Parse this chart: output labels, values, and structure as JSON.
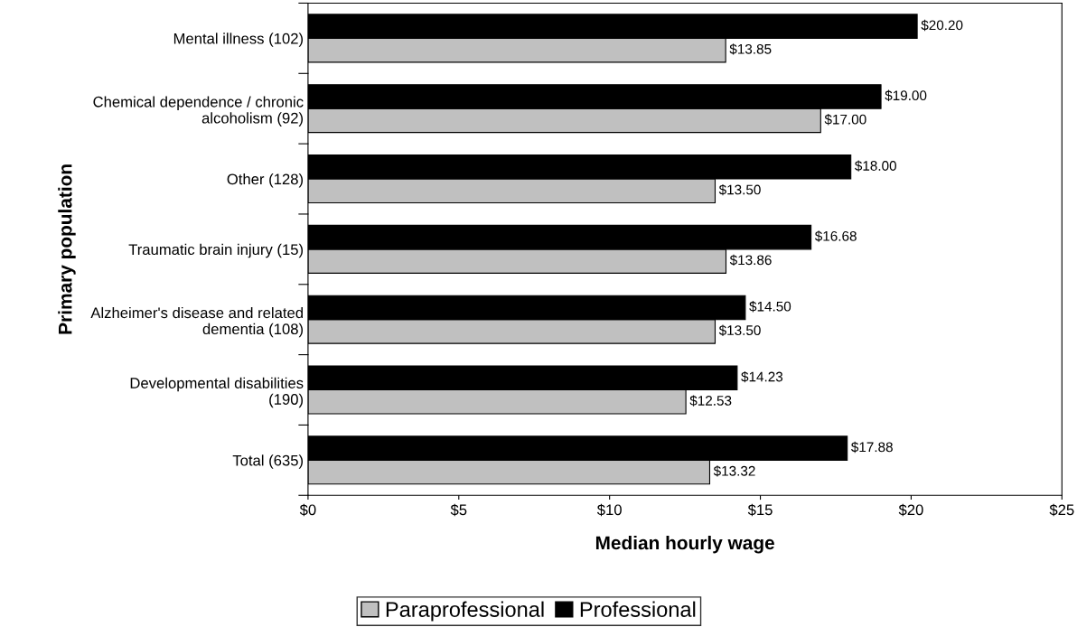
{
  "chart_data": {
    "type": "bar",
    "orientation": "horizontal",
    "xlabel": "Median hourly wage",
    "ylabel": "Primary population",
    "categories": [
      "Mental illness (102)",
      "Chemical dependence / chronic\nalcoholism (92)",
      "Other (128)",
      "Traumatic brain injury (15)",
      "Alzheimer's disease and related\ndementia (108)",
      "Developmental disabilities\n(190)",
      "Total (635)"
    ],
    "series": [
      {
        "name": "Paraprofessional",
        "color": "#c0c0c0",
        "values": [
          13.85,
          17.0,
          13.5,
          13.86,
          13.5,
          12.53,
          13.32
        ],
        "value_labels": [
          "$13.85",
          "$17.00",
          "$13.50",
          "$13.86",
          "$13.50",
          "$12.53",
          "$13.32"
        ]
      },
      {
        "name": "Professional",
        "color": "#000000",
        "values": [
          20.2,
          19.0,
          18.0,
          16.68,
          14.5,
          14.23,
          17.88
        ],
        "value_labels": [
          "$20.20",
          "$19.00",
          "$18.00",
          "$16.68",
          "$14.50",
          "$14.23",
          "$17.88"
        ]
      }
    ],
    "xlim": [
      0,
      25
    ],
    "xticks": [
      {
        "value": 0,
        "label": "$0"
      },
      {
        "value": 5,
        "label": "$5"
      },
      {
        "value": 10,
        "label": "$10"
      },
      {
        "value": 15,
        "label": "$15"
      },
      {
        "value": 20,
        "label": "$20"
      },
      {
        "value": 25,
        "label": "$25"
      }
    ],
    "grid": false,
    "legend": "bottom"
  }
}
